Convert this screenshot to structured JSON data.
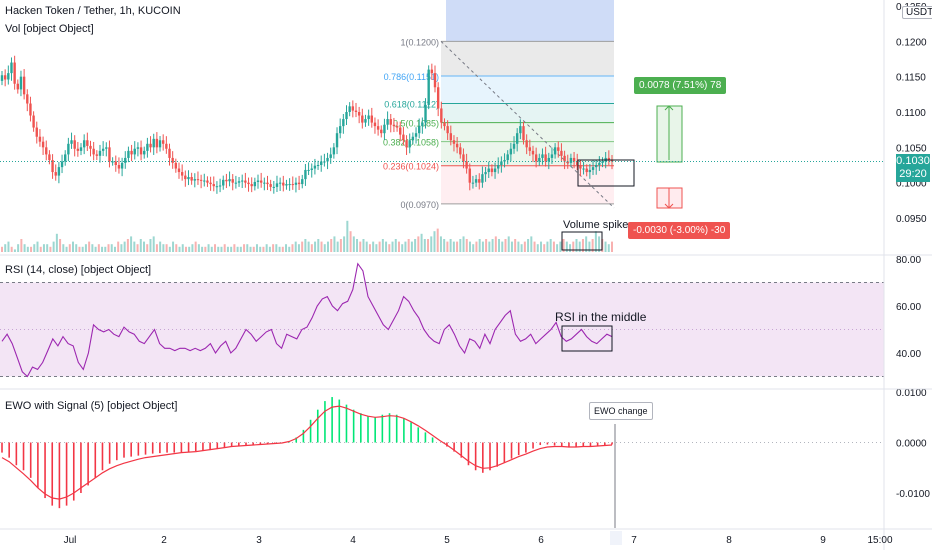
{
  "header": {
    "symbol": "Hacken Token / Tether, 1h, KUCOIN",
    "vol_label": "Vol [object Object]",
    "currency": "USDT"
  },
  "colors": {
    "up": "#26a69a",
    "down": "#ef5350",
    "rsi": "#9c27b0",
    "rsi_band": "#f3e5f5",
    "ewo_up": "#00e676",
    "ewo_down": "#f23645",
    "signal": "#f23645",
    "price_line": "#26a69a"
  },
  "price_axis": {
    "ticks": [
      "0.1250",
      "0.1200",
      "0.1150",
      "0.1100",
      "0.1050",
      "0.1000",
      "0.0950"
    ]
  },
  "current_price": {
    "value": "0.1030",
    "countdown": "29:20"
  },
  "time_axis": {
    "ticks": [
      "Jul",
      "2",
      "3",
      "4",
      "5",
      "6",
      "7",
      "8",
      "9",
      "15:00"
    ]
  },
  "fib_levels": [
    {
      "label": "1(0.1200)",
      "value": 0.12,
      "fill": "#e6e6e6",
      "stroke": "#9e9e9e",
      "text": "#787b86"
    },
    {
      "label": "0.786(0.1151)",
      "value": 0.1151,
      "fill": "#e3f2fd",
      "stroke": "#64b5f6",
      "text": "#42a5f5"
    },
    {
      "label": "0.618(0.1112)",
      "value": 0.1112,
      "fill": "#e0f2f1",
      "stroke": "#26a69a",
      "text": "#26a69a"
    },
    {
      "label": "0.5(0.1085)",
      "value": 0.1085,
      "fill": "#e8f5e9",
      "stroke": "#4caf50",
      "text": "#4caf50"
    },
    {
      "label": "0.382(0.1058)",
      "value": 0.1058,
      "fill": "#e8f5e9",
      "stroke": "#81c784",
      "text": "#4caf50"
    },
    {
      "label": "0.236(0.1024)",
      "value": 0.1024,
      "fill": "#ffebee",
      "stroke": "#ef5350",
      "text": "#ef5350"
    },
    {
      "label": "0(0.0970)",
      "value": 0.097,
      "fill": "",
      "stroke": "#9e9e9e",
      "text": "#787b86"
    }
  ],
  "long_position": {
    "label": "0.0078 (7.51%) 78"
  },
  "short_position": {
    "label": "-0.0030 (-3.00%) -30"
  },
  "annotations": {
    "volume_spike": "Volume spike",
    "rsi_middle": "RSI in the middle",
    "ewo_change": "EWO change"
  },
  "rsi": {
    "label": "RSI (14, close) [object Object]",
    "ticks": [
      "80.00",
      "60.00",
      "40.00"
    ]
  },
  "ewo": {
    "label": "EWO with Signal (5) [object Object]",
    "ticks": [
      "0.0100",
      "0.0000",
      "-0.0100"
    ]
  },
  "chart_data": [
    {
      "type": "candlestick",
      "title": "Hacken Token / Tether, 1h, KUCOIN",
      "x": [
        "Jul",
        "2",
        "3",
        "4",
        "5",
        "6",
        "7",
        "8",
        "9",
        "15:00"
      ],
      "ylim": [
        0.0925,
        0.1255
      ],
      "close_series": [
        0.1152,
        0.1146,
        0.1155,
        0.117,
        0.114,
        0.1132,
        0.115,
        0.1125,
        0.1112,
        0.1095,
        0.1078,
        0.1065,
        0.1058,
        0.105,
        0.104,
        0.1032,
        0.1015,
        0.101,
        0.1022,
        0.103,
        0.104,
        0.1055,
        0.106,
        0.1048,
        0.1045,
        0.105,
        0.106,
        0.1052,
        0.1048,
        0.104,
        0.1038,
        0.1045,
        0.1048,
        0.105,
        0.103,
        0.103,
        0.1025,
        0.102,
        0.1028,
        0.1035,
        0.1045,
        0.104,
        0.1048,
        0.105,
        0.104,
        0.1045,
        0.1055,
        0.105,
        0.1062,
        0.105,
        0.106,
        0.1055,
        0.1048,
        0.1035,
        0.1028,
        0.102,
        0.1015,
        0.101,
        0.1005,
        0.1008,
        0.1003,
        0.1005,
        0.1004,
        0.1003,
        0.1003,
        0.1,
        0.0998,
        0.0995,
        0.0995,
        0.0996,
        0.1004,
        0.1002,
        0.1005,
        0.1,
        0.1,
        0.1002,
        0.1003,
        0.1,
        0.0998,
        0.0995,
        0.1001,
        0.1003,
        0.1,
        0.1,
        0.0998,
        0.0994,
        0.0994,
        0.0999,
        0.1,
        0.0996,
        0.0998,
        0.0998,
        0.0997,
        0.1,
        0.0998,
        0.1005,
        0.1018,
        0.1018,
        0.102,
        0.1024,
        0.1025,
        0.103,
        0.103,
        0.1035,
        0.104,
        0.105,
        0.107,
        0.108,
        0.109,
        0.11,
        0.1108,
        0.1102,
        0.11,
        0.1095,
        0.1085,
        0.109,
        0.1095,
        0.1085,
        0.108,
        0.1075,
        0.107,
        0.1082,
        0.109,
        0.1082,
        0.108,
        0.1078,
        0.1068,
        0.106,
        0.105,
        0.106,
        0.1065,
        0.107,
        0.108,
        0.1085,
        0.111,
        0.116,
        0.1155,
        0.1135,
        0.1105,
        0.1085,
        0.108,
        0.107,
        0.106,
        0.1055,
        0.105,
        0.104,
        0.103,
        0.102,
        0.1,
        0.1,
        0.1005,
        0.1,
        0.1012,
        0.1015,
        0.102,
        0.1015,
        0.102,
        0.1025,
        0.103,
        0.1032,
        0.104,
        0.1048,
        0.1055,
        0.107,
        0.108,
        0.106,
        0.105,
        0.1045,
        0.104,
        0.103,
        0.1035,
        0.104,
        0.103,
        0.1035,
        0.104,
        0.105,
        0.1045,
        0.1038,
        0.103,
        0.1028,
        0.1035,
        0.103,
        0.1025,
        0.102,
        0.102,
        0.1015,
        0.1018,
        0.1022,
        0.1025,
        0.1028,
        0.103,
        0.1035,
        0.1032,
        0.103
      ],
      "current": 0.103,
      "volume_series": [
        2,
        3,
        4,
        2,
        1,
        3,
        5,
        3,
        2,
        2,
        3,
        4,
        2,
        3,
        3,
        2,
        4,
        7,
        5,
        3,
        2,
        3,
        4,
        3,
        2,
        2,
        3,
        4,
        3,
        2,
        3,
        2,
        2,
        3,
        3,
        2,
        4,
        3,
        4,
        5,
        6,
        4,
        3,
        5,
        4,
        3,
        5,
        6,
        3,
        4,
        3,
        3,
        2,
        4,
        3,
        2,
        3,
        2,
        2,
        3,
        4,
        3,
        2,
        2,
        3,
        2,
        3,
        2,
        2,
        3,
        2,
        2,
        3,
        2,
        2,
        3,
        3,
        2,
        2,
        3,
        2,
        2,
        3,
        2,
        3,
        3,
        2,
        2,
        3,
        2,
        3,
        4,
        3,
        4,
        5,
        4,
        3,
        4,
        5,
        4,
        3,
        4,
        5,
        6,
        4,
        5,
        6,
        12,
        8,
        6,
        5,
        4,
        5,
        4,
        3,
        4,
        3,
        4,
        5,
        4,
        3,
        4,
        5,
        4,
        3,
        4,
        5,
        4,
        5,
        6,
        7,
        5,
        5,
        6,
        8,
        9,
        6,
        5,
        4,
        5,
        4,
        4,
        5,
        6,
        5,
        4,
        3,
        4,
        5,
        4,
        5,
        4,
        5,
        6,
        5,
        4,
        5,
        6,
        4,
        5,
        4,
        3,
        4,
        5,
        6,
        4,
        3,
        4,
        3,
        4,
        5,
        4,
        3,
        4,
        5,
        4,
        3,
        4,
        5,
        4,
        5,
        6,
        4,
        5,
        8,
        6,
        5,
        4,
        3,
        4
      ]
    },
    {
      "type": "line",
      "title": "RSI (14, close) [object Object]",
      "ylim": [
        25,
        82
      ],
      "band": [
        30,
        70
      ],
      "values": [
        45,
        48,
        44,
        38,
        32,
        30,
        34,
        33,
        36,
        41,
        46,
        43,
        47,
        44,
        43,
        36,
        33,
        40,
        52,
        50,
        49,
        50,
        48,
        47,
        51,
        49,
        48,
        45,
        44,
        47,
        50,
        44,
        42,
        42,
        41,
        42,
        42,
        41,
        42,
        41,
        42,
        44,
        40,
        43,
        45,
        40,
        42,
        46,
        50,
        48,
        45,
        47,
        49,
        50,
        44,
        42,
        48,
        47,
        46,
        50,
        51,
        55,
        60,
        63,
        64,
        60,
        58,
        61,
        62,
        67,
        78,
        75,
        64,
        60,
        56,
        52,
        50,
        54,
        58,
        64,
        62,
        58,
        55,
        50,
        47,
        45,
        44,
        50,
        52,
        48,
        43,
        40,
        46,
        45,
        42,
        48,
        44,
        50,
        53,
        56,
        58,
        48,
        45,
        46,
        48,
        44,
        46,
        48,
        50,
        53,
        47,
        45,
        46,
        48,
        50,
        47,
        45,
        44,
        46,
        48,
        47
      ]
    },
    {
      "type": "bar",
      "title": "EWO with Signal (5) [object Object]",
      "ylim": [
        -0.014,
        0.0115
      ],
      "values": [
        -0.002,
        -0.003,
        -0.0045,
        -0.0055,
        -0.007,
        -0.009,
        -0.011,
        -0.0125,
        -0.013,
        -0.0125,
        -0.0115,
        -0.01,
        -0.0085,
        -0.007,
        -0.0055,
        -0.0042,
        -0.0035,
        -0.003,
        -0.0028,
        -0.0026,
        -0.0024,
        -0.0022,
        -0.0021,
        -0.002,
        -0.002,
        -0.0019,
        -0.0018,
        -0.0017,
        -0.0016,
        -0.0015,
        -0.0013,
        -0.001,
        -0.0008,
        -0.0006,
        -0.0005,
        -0.0004,
        -0.0003,
        -0.0002,
        -0.0001,
        0.0,
        0.0003,
        0.001,
        0.0025,
        0.0045,
        0.0065,
        0.0082,
        0.009,
        0.0085,
        0.0075,
        0.0065,
        0.0058,
        0.0052,
        0.005,
        0.0055,
        0.0058,
        0.0055,
        0.0048,
        0.004,
        0.003,
        0.002,
        0.001,
        0.0,
        -0.0008,
        -0.0018,
        -0.003,
        -0.0045,
        -0.0055,
        -0.006,
        -0.0055,
        -0.0048,
        -0.004,
        -0.0032,
        -0.0025,
        -0.002,
        -0.0012,
        -0.0005,
        -0.0004,
        -0.0006,
        -0.0008,
        -0.001,
        -0.0009,
        -0.0008,
        -0.0007,
        -0.0006,
        -0.0005,
        -0.0004
      ],
      "signal": [
        -0.003,
        -0.0038,
        -0.005,
        -0.0062,
        -0.0075,
        -0.009,
        -0.0102,
        -0.011,
        -0.0112,
        -0.0108,
        -0.01,
        -0.009,
        -0.008,
        -0.007,
        -0.006,
        -0.0052,
        -0.0046,
        -0.0041,
        -0.0037,
        -0.0033,
        -0.003,
        -0.0028,
        -0.0026,
        -0.0024,
        -0.0022,
        -0.002,
        -0.0019,
        -0.0018,
        -0.0016,
        -0.0014,
        -0.0012,
        -0.001,
        -0.0008,
        -0.0007,
        -0.0006,
        -0.0005,
        -0.0004,
        -0.0003,
        -0.0002,
        -0.0001,
        0.0002,
        0.0008,
        0.0018,
        0.0032,
        0.0048,
        0.0062,
        0.007,
        0.0072,
        0.0068,
        0.0062,
        0.0056,
        0.0052,
        0.005,
        0.0051,
        0.0053,
        0.0052,
        0.0048,
        0.0041,
        0.0033,
        0.0024,
        0.0014,
        0.0004,
        -0.0005,
        -0.0015,
        -0.0026,
        -0.0037,
        -0.0046,
        -0.0051,
        -0.005,
        -0.0046,
        -0.004,
        -0.0034,
        -0.0028,
        -0.0023,
        -0.0017,
        -0.0012,
        -0.0009,
        -0.0008,
        -0.0008,
        -0.0009,
        -0.0009,
        -0.0008,
        -0.0008,
        -0.0007,
        -0.0006,
        -0.0005
      ]
    }
  ]
}
